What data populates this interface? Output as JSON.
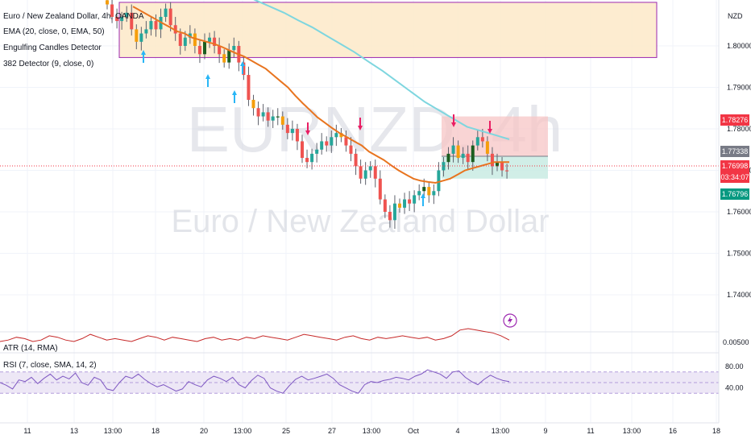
{
  "legend": {
    "symbol": "Euro / New Zealand Dollar, 4h, OANDA",
    "ema": "EMA (20, close, 0, EMA, 50)",
    "engulfing": "Engulfing Candles Detector",
    "detector": "382 Detector (9, close, 0)"
  },
  "watermark": {
    "ticker": "EURNZD, 4h",
    "name": "Euro / New Zealand Dollar"
  },
  "atr_label": "ATR (14, RMA)",
  "rsi_label": "RSI (7, close, SMA, 14, 2)",
  "currency": "NZD",
  "colors": {
    "up": "#26a69a",
    "down": "#ef5350",
    "ema": "#e8741f",
    "ma_long": "#7ed6df",
    "zone_border": "#9c27b0",
    "rsi": "#7e57c2"
  },
  "chart_data": [
    {
      "type": "candlestick",
      "title": "Euro / New Zealand Dollar, 4h, OANDA",
      "ylim": [
        1.7335,
        1.813
      ],
      "y_ticks": [
        "1.80000",
        "1.79000",
        "1.78000",
        "1.77000",
        "1.76000",
        "1.75000",
        "1.74000"
      ],
      "y_tick_values": [
        1.8,
        1.79,
        1.78,
        1.77,
        1.76,
        1.75,
        1.74
      ],
      "x_ticks": [
        "11",
        "13",
        "13:00",
        "18",
        "20",
        "13:00",
        "25",
        "27",
        "13:00",
        "Oct",
        "4",
        "13:00",
        "9",
        "11",
        "13:00",
        "16",
        "18"
      ],
      "price_labels": [
        {
          "text": "1.78276",
          "value": 1.78276,
          "color": "#f23645"
        },
        {
          "text": "1.77338",
          "value": 1.77338,
          "color": "#787b86"
        },
        {
          "text": "1.76998",
          "value": 1.76998,
          "color": "#f23645"
        },
        {
          "text": "03:34:07",
          "value": 1.76998,
          "color": "#f23645"
        },
        {
          "text": "1.76796",
          "value": 1.76796,
          "color": "#089981"
        }
      ],
      "closes": [
        1.81,
        1.807,
        1.806,
        1.807,
        1.808,
        1.804,
        1.801,
        1.803,
        1.804,
        1.806,
        1.804,
        1.807,
        1.809,
        1.805,
        1.803,
        1.8,
        1.802,
        1.803,
        1.8,
        1.798,
        1.801,
        1.802,
        1.8,
        1.798,
        1.796,
        1.799,
        1.8,
        1.796,
        1.793,
        1.787,
        1.785,
        1.783,
        1.784,
        1.782,
        1.783,
        1.783,
        1.781,
        1.779,
        1.78,
        1.777,
        1.773,
        1.772,
        1.774,
        1.775,
        1.777,
        1.776,
        1.778,
        1.779,
        1.778,
        1.776,
        1.774,
        1.771,
        1.768,
        1.77,
        1.771,
        1.768,
        1.763,
        1.76,
        1.758,
        1.762,
        1.761,
        1.763,
        1.762,
        1.764,
        1.765,
        1.766,
        1.764,
        1.765,
        1.77,
        1.772,
        1.774,
        1.776,
        1.773,
        1.774,
        1.772,
        1.776,
        1.778,
        1.777,
        1.774,
        1.771,
        1.772,
        1.77,
        1.7698
      ],
      "ema": [
        1.8095,
        1.8085,
        1.8075,
        1.8065,
        1.8055,
        1.8045,
        1.8035,
        1.803,
        1.802,
        1.8015,
        1.801,
        1.8005,
        1.7998,
        1.799,
        1.7982,
        1.7975,
        1.7965,
        1.7955,
        1.7945,
        1.793,
        1.7915,
        1.79,
        1.788,
        1.7862,
        1.7845,
        1.7828,
        1.7815,
        1.7802,
        1.779,
        1.778,
        1.777,
        1.776,
        1.7745,
        1.7735,
        1.7725,
        1.7712,
        1.77,
        1.769,
        1.768,
        1.7675,
        1.7672,
        1.767,
        1.7675,
        1.768,
        1.769,
        1.77,
        1.7705,
        1.771,
        1.7715,
        1.772,
        1.772,
        1.772
      ],
      "ma_long": [
        1.8125,
        1.811,
        1.8095,
        1.808,
        1.8062,
        1.8045,
        1.8025,
        1.8005,
        1.7985,
        1.7962,
        1.794,
        1.7915,
        1.789,
        1.7865,
        1.7845,
        1.7825,
        1.7805,
        1.7795,
        1.7785,
        1.7775
      ],
      "zones": [
        {
          "from": 1.8105,
          "to": 1.7972,
          "fill": "#fde9c8",
          "border": "#9c27b0"
        },
        {
          "from": 1.783,
          "to": 1.7734,
          "fill": "#f7c6c6"
        },
        {
          "from": 1.7734,
          "to": 1.768,
          "fill": "#c9ebe3"
        }
      ]
    },
    {
      "type": "line",
      "title": "ATR (14, RMA)",
      "y_ticks": [
        "0.00500"
      ],
      "values": [
        0.0049,
        0.005,
        0.0052,
        0.0051,
        0.0049,
        0.005,
        0.0053,
        0.0052,
        0.005,
        0.0049,
        0.0051,
        0.0054,
        0.0052,
        0.005,
        0.0051,
        0.005,
        0.0049,
        0.0051,
        0.0053,
        0.0052,
        0.005,
        0.0052,
        0.0051,
        0.005,
        0.0049,
        0.0051,
        0.0052,
        0.005,
        0.0051,
        0.005,
        0.0052,
        0.0051,
        0.0053,
        0.0052,
        0.0051,
        0.005,
        0.0052,
        0.0054,
        0.0053,
        0.0052,
        0.0051,
        0.005,
        0.0052,
        0.0053,
        0.0051,
        0.005,
        0.0052,
        0.0051,
        0.0052,
        0.0053,
        0.0052,
        0.0051,
        0.0052,
        0.005,
        0.0051,
        0.0053,
        0.0057,
        0.0058,
        0.0057,
        0.0056,
        0.0055,
        0.0053,
        0.005
      ]
    },
    {
      "type": "line",
      "title": "RSI (7, close, SMA, 14, 2)",
      "ylim": [
        0,
        100
      ],
      "y_ticks": [
        "80.00",
        "40.00"
      ],
      "y_tick_values": [
        80,
        40
      ],
      "band": [
        30,
        70
      ],
      "values": [
        50,
        45,
        38,
        55,
        52,
        60,
        48,
        58,
        66,
        55,
        62,
        57,
        68,
        50,
        45,
        60,
        55,
        38,
        35,
        50,
        62,
        58,
        66,
        56,
        48,
        42,
        46,
        40,
        34,
        38,
        52,
        46,
        42,
        55,
        62,
        58,
        52,
        60,
        46,
        40,
        54,
        64,
        58,
        40,
        34,
        30,
        44,
        56,
        62,
        55,
        58,
        62,
        66,
        58,
        46,
        40,
        34,
        30,
        46,
        52,
        50,
        54,
        56,
        60,
        58,
        55,
        62,
        66,
        74,
        70,
        66,
        58,
        70,
        72,
        60,
        52,
        46,
        56,
        64,
        58,
        54,
        52
      ]
    }
  ]
}
